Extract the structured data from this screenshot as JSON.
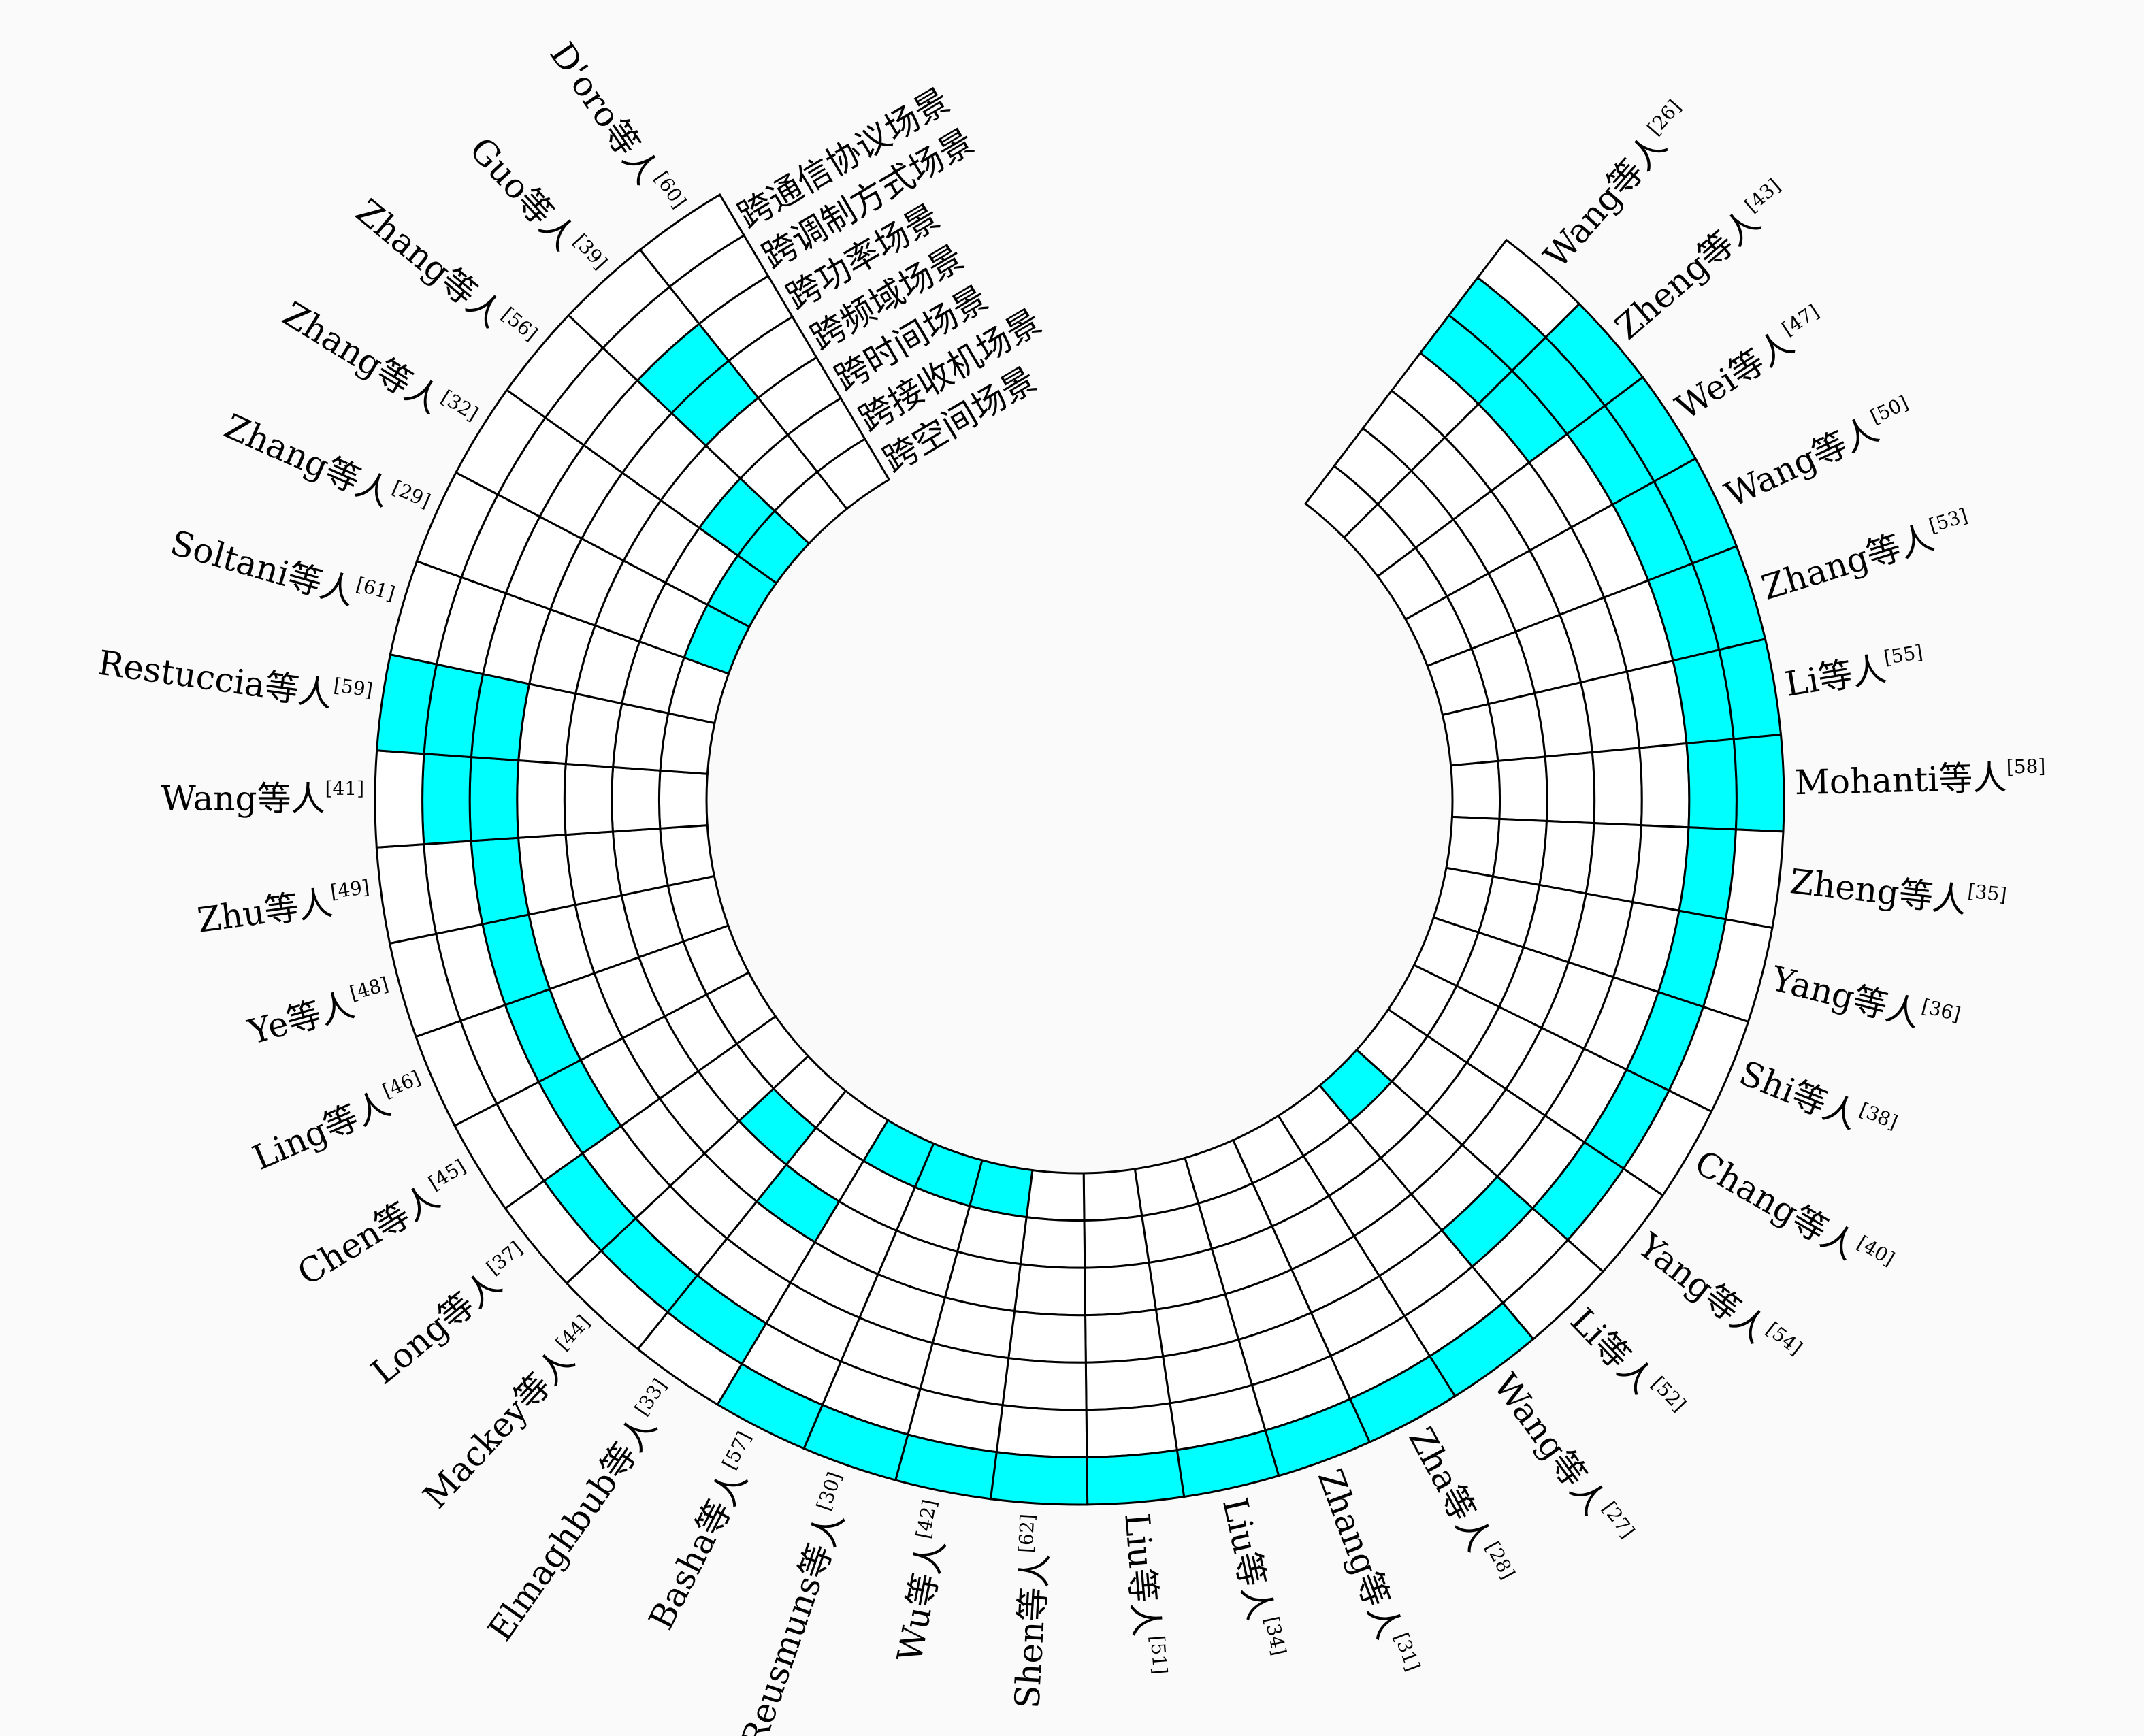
{
  "colors": {
    "highlight": "#00ffff",
    "empty": "#ffffff",
    "line": "#000000"
  },
  "rings": [
    "跨通信协议场景",
    "跨调制方式场景",
    "跨功率场景",
    "跨频域场景",
    "跨时间场景",
    "跨接收机场景",
    "跨空间场景"
  ],
  "papers": [
    {
      "name": "Wang等人",
      "ref": "[26]",
      "cells": [
        0,
        0,
        0,
        0,
        1,
        1,
        0
      ]
    },
    {
      "name": "Zheng等人",
      "ref": "[43]",
      "cells": [
        0,
        0,
        0,
        0,
        1,
        1,
        1
      ]
    },
    {
      "name": "Wei等人",
      "ref": "[47]",
      "cells": [
        0,
        0,
        0,
        0,
        0,
        1,
        1
      ]
    },
    {
      "name": "Wang等人",
      "ref": "[50]",
      "cells": [
        0,
        0,
        0,
        0,
        0,
        1,
        1
      ]
    },
    {
      "name": "Zhang等人",
      "ref": "[53]",
      "cells": [
        0,
        0,
        0,
        0,
        0,
        1,
        1
      ]
    },
    {
      "name": "Li等人",
      "ref": "[55]",
      "cells": [
        0,
        0,
        0,
        0,
        0,
        1,
        1
      ]
    },
    {
      "name": "Mohanti等人",
      "ref": "[58]",
      "cells": [
        0,
        0,
        0,
        0,
        0,
        1,
        1
      ]
    },
    {
      "name": "Zheng等人",
      "ref": "[35]",
      "cells": [
        0,
        0,
        0,
        0,
        0,
        1,
        0
      ]
    },
    {
      "name": "Yang等人",
      "ref": "[36]",
      "cells": [
        0,
        0,
        0,
        0,
        0,
        1,
        0
      ]
    },
    {
      "name": "Shi等人",
      "ref": "[38]",
      "cells": [
        0,
        0,
        0,
        0,
        0,
        1,
        0
      ]
    },
    {
      "name": "Chang等人",
      "ref": "[40]",
      "cells": [
        0,
        0,
        0,
        0,
        0,
        1,
        0
      ]
    },
    {
      "name": "Yang等人",
      "ref": "[54]",
      "cells": [
        0,
        0,
        0,
        0,
        0,
        1,
        0
      ]
    },
    {
      "name": "Li等人",
      "ref": "[52]",
      "cells": [
        1,
        0,
        0,
        0,
        1,
        0,
        0
      ]
    },
    {
      "name": "Wang等人",
      "ref": "[27]",
      "cells": [
        0,
        0,
        0,
        0,
        0,
        0,
        1
      ]
    },
    {
      "name": "Zha等人",
      "ref": "[28]",
      "cells": [
        0,
        0,
        0,
        0,
        0,
        0,
        1
      ]
    },
    {
      "name": "Zhang等人",
      "ref": "[31]",
      "cells": [
        0,
        0,
        0,
        0,
        0,
        0,
        1
      ]
    },
    {
      "name": "Liu等人",
      "ref": "[34]",
      "cells": [
        0,
        0,
        0,
        0,
        0,
        0,
        1
      ]
    },
    {
      "name": "Liu等人",
      "ref": "[51]",
      "cells": [
        0,
        0,
        0,
        0,
        0,
        0,
        1
      ]
    },
    {
      "name": "Shen等人",
      "ref": "[62]",
      "cells": [
        0,
        0,
        0,
        0,
        0,
        0,
        1
      ]
    },
    {
      "name": "Wu等人",
      "ref": "[42]",
      "cells": [
        1,
        0,
        0,
        0,
        0,
        0,
        1
      ]
    },
    {
      "name": "Reusmuns等人",
      "ref": "[30]",
      "cells": [
        1,
        0,
        0,
        0,
        0,
        0,
        1
      ]
    },
    {
      "name": "Basha等人",
      "ref": "[57]",
      "cells": [
        1,
        0,
        0,
        0,
        0,
        0,
        1
      ]
    },
    {
      "name": "Elmaghbub等人",
      "ref": "[33]",
      "cells": [
        0,
        0,
        1,
        0,
        0,
        1,
        0
      ]
    },
    {
      "name": "Mackey等人",
      "ref": "[44]",
      "cells": [
        0,
        1,
        0,
        0,
        0,
        1,
        0
      ]
    },
    {
      "name": "Long等人",
      "ref": "[37]",
      "cells": [
        0,
        0,
        0,
        0,
        0,
        1,
        0
      ]
    },
    {
      "name": "Chen等人",
      "ref": "[45]",
      "cells": [
        0,
        0,
        0,
        0,
        1,
        0,
        0
      ]
    },
    {
      "name": "Ling等人",
      "ref": "[46]",
      "cells": [
        0,
        0,
        0,
        0,
        1,
        0,
        0
      ]
    },
    {
      "name": "Ye等人",
      "ref": "[48]",
      "cells": [
        0,
        0,
        0,
        0,
        1,
        0,
        0
      ]
    },
    {
      "name": "Zhu等人",
      "ref": "[49]",
      "cells": [
        0,
        0,
        0,
        0,
        1,
        0,
        0
      ]
    },
    {
      "name": "Wang等人",
      "ref": "[41]",
      "cells": [
        0,
        0,
        0,
        0,
        1,
        1,
        0
      ]
    },
    {
      "name": "Restuccia等人",
      "ref": "[59]",
      "cells": [
        0,
        0,
        0,
        0,
        1,
        1,
        1
      ]
    },
    {
      "name": "Soltani等人",
      "ref": "[61]",
      "cells": [
        0,
        0,
        0,
        0,
        0,
        0,
        0
      ]
    },
    {
      "name": "Zhang等人",
      "ref": "[29]",
      "cells": [
        1,
        0,
        0,
        0,
        0,
        0,
        0
      ]
    },
    {
      "name": "Zhang等人",
      "ref": "[32]",
      "cells": [
        1,
        0,
        0,
        0,
        0,
        0,
        0
      ]
    },
    {
      "name": "Zhang等人",
      "ref": "[56]",
      "cells": [
        1,
        1,
        0,
        0,
        0,
        0,
        0
      ]
    },
    {
      "name": "Guo等人",
      "ref": "[39]",
      "cells": [
        0,
        0,
        0,
        1,
        1,
        0,
        0
      ]
    },
    {
      "name": "D'oro等人",
      "ref": "[60]",
      "cells": [
        0,
        0,
        0,
        0,
        0,
        0,
        0
      ]
    }
  ]
}
